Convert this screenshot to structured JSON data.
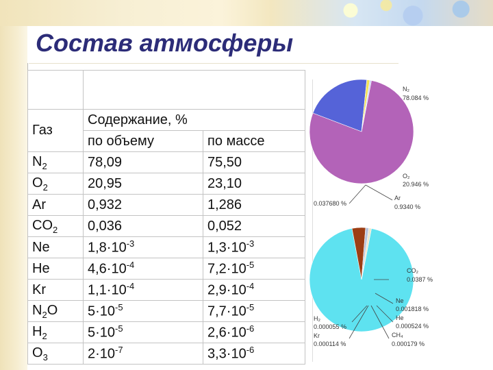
{
  "title": "Состав атмосферы",
  "table": {
    "header": {
      "gas": "Газ",
      "content": "Содержание, %",
      "by_volume": "по объему",
      "by_mass": "по массе"
    },
    "rows": [
      {
        "gas": "N",
        "gas_sub": "2",
        "vol": "78,09",
        "vol_exp": "",
        "mass": "75,50",
        "mass_exp": ""
      },
      {
        "gas": "O",
        "gas_sub": "2",
        "vol": "20,95",
        "vol_exp": "",
        "mass": "23,10",
        "mass_exp": ""
      },
      {
        "gas": "Ar",
        "gas_sub": "",
        "vol": "0,932",
        "vol_exp": "",
        "mass": "1,286",
        "mass_exp": ""
      },
      {
        "gas": "CO",
        "gas_sub": "2",
        "vol": "0,036",
        "vol_exp": "",
        "mass": "0,052",
        "mass_exp": ""
      },
      {
        "gas": "Ne",
        "gas_sub": "",
        "vol": "1,8·10",
        "vol_exp": "-3",
        "mass": "1,3·10",
        "mass_exp": "-3"
      },
      {
        "gas": "He",
        "gas_sub": "",
        "vol": "4,6·10",
        "vol_exp": "-4",
        "mass": "7,2·10",
        "mass_exp": "-5"
      },
      {
        "gas": "Kr",
        "gas_sub": "",
        "vol": "1,1·10",
        "vol_exp": "-4",
        "mass": "2,9·10",
        "mass_exp": "-4"
      },
      {
        "gas": "N",
        "gas_sub": "2",
        "gas_rest": "O",
        "vol": "5·10",
        "vol_exp": "-5",
        "mass": "7,7·10",
        "mass_exp": "-5"
      },
      {
        "gas": "H",
        "gas_sub": "2",
        "vol": "5·10",
        "vol_exp": "-5",
        "mass": "2,6·10",
        "mass_exp": "-6"
      },
      {
        "gas": "O",
        "gas_sub": "3",
        "vol": "2·10",
        "vol_exp": "-7",
        "mass": "3,3·10",
        "mass_exp": "-6"
      }
    ]
  },
  "chart_data": [
    {
      "type": "pie",
      "labels": [
        "N₂",
        "O₂",
        "Ar",
        ""
      ],
      "values": [
        78.084,
        20.946,
        0.934,
        0.03768
      ],
      "label_texts": [
        "78.084 %",
        "20.946 %",
        "0.9340 %",
        "0.037680 %"
      ],
      "colors": [
        "#b363b8",
        "#5563d8",
        "#f2e255",
        "#cfd2f4"
      ]
    },
    {
      "type": "pie",
      "labels": [
        "",
        "CO₂",
        "Ne",
        "He",
        "CH₄",
        "H₂",
        "Kr"
      ],
      "values": [
        94.82,
        0.0387,
        0.001818,
        0.000524,
        0.000179,
        5.5e-05,
        0.000114
      ],
      "label_texts": [
        "",
        "0.0387 %",
        "0.001818 %",
        "0.000524 %",
        "0.000179 %",
        "0.000055 %",
        "0.000114 %"
      ],
      "colors": [
        "#5ee2f0",
        "#9c3e14",
        "#b7c4dc",
        "#e4d8b0",
        "#ffffff",
        "#ffffff",
        "#ffffff"
      ],
      "display_slices": [
        {
          "value": 94.0,
          "color": "#5ee2f0"
        },
        {
          "value": 4.2,
          "color": "#9c3e14"
        },
        {
          "value": 1.0,
          "color": "#b7c4dc"
        },
        {
          "value": 0.8,
          "color": "#eee6c8"
        }
      ]
    }
  ]
}
